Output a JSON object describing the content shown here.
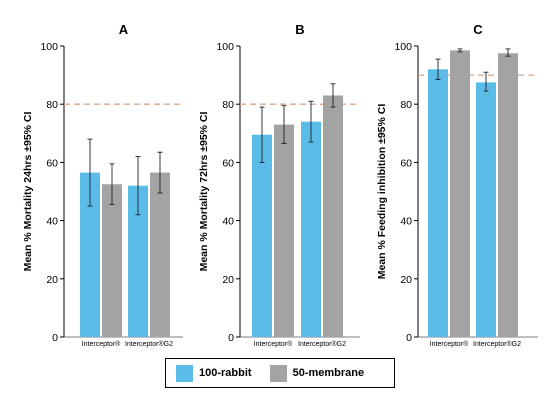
{
  "chart_data": [
    {
      "type": "bar",
      "title": "A",
      "ylabel": "Mean % Mortality 24hrs  ±95% CI",
      "ylim": [
        0,
        100
      ],
      "yticks": [
        0,
        20,
        40,
        60,
        80,
        100
      ],
      "reference_line": 80,
      "categories": [
        "Interceptor®",
        "Interceptor®G2"
      ],
      "series": [
        {
          "name": "100-rabbit",
          "values": [
            56.5,
            52
          ],
          "ci_low": [
            45,
            42
          ],
          "ci_high": [
            68,
            62
          ]
        },
        {
          "name": "50-membrane",
          "values": [
            52.5,
            56.5
          ],
          "ci_low": [
            45.5,
            49.5
          ],
          "ci_high": [
            59.5,
            63.5
          ]
        }
      ]
    },
    {
      "type": "bar",
      "title": "B",
      "ylabel": "Mean % Mortality 72hrs  ±95% CI",
      "ylim": [
        0,
        100
      ],
      "yticks": [
        0,
        20,
        40,
        60,
        80,
        100
      ],
      "reference_line": 80,
      "categories": [
        "Interceptor®",
        "Interceptor®G2"
      ],
      "series": [
        {
          "name": "100-rabbit",
          "values": [
            69.5,
            74
          ],
          "ci_low": [
            60,
            67
          ],
          "ci_high": [
            79,
            81
          ]
        },
        {
          "name": "50-membrane",
          "values": [
            73,
            83
          ],
          "ci_low": [
            66.5,
            79
          ],
          "ci_high": [
            79.5,
            87
          ]
        }
      ]
    },
    {
      "type": "bar",
      "title": "C",
      "ylabel": "Mean % Feeding inhibition ±95% CI",
      "ylim": [
        0,
        100
      ],
      "yticks": [
        0,
        20,
        40,
        60,
        80,
        100
      ],
      "reference_line": 90,
      "categories": [
        "Interceptor®",
        "Interceptor®G2"
      ],
      "series": [
        {
          "name": "100-rabbit",
          "values": [
            92,
            87.5
          ],
          "ci_low": [
            88.5,
            84.5
          ],
          "ci_high": [
            95.5,
            91
          ]
        },
        {
          "name": "50-membrane",
          "values": [
            98.5,
            97.5
          ],
          "ci_low": [
            98,
            96.5
          ],
          "ci_high": [
            99,
            99
          ]
        }
      ]
    }
  ],
  "legend": {
    "items": [
      {
        "label": "100-rabbit",
        "color": "#5bbcea"
      },
      {
        "label": "50-membrane",
        "color": "#a3a3a3"
      }
    ]
  },
  "colors": {
    "ref_line": "#d9a88a",
    "axis": "#000000",
    "errorbar": "#222222"
  }
}
